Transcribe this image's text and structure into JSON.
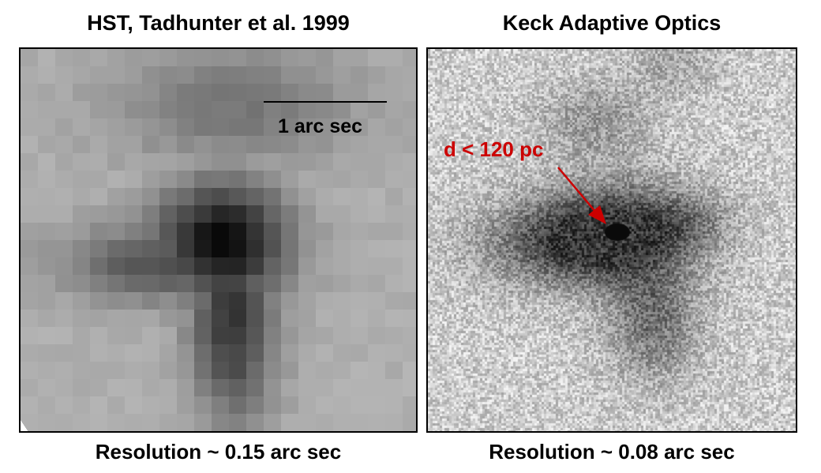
{
  "left_panel": {
    "title": "HST, Tadhunter et al. 1999",
    "scale_label": "1 arc sec",
    "caption": "Resolution ~ 0.15 arc sec"
  },
  "right_panel": {
    "title": "Keck Adaptive Optics",
    "annotation": "d < 120 pc",
    "caption": "Resolution ~ 0.08 arc sec"
  },
  "colors": {
    "annotation": "#cc0000",
    "text": "#000000"
  }
}
